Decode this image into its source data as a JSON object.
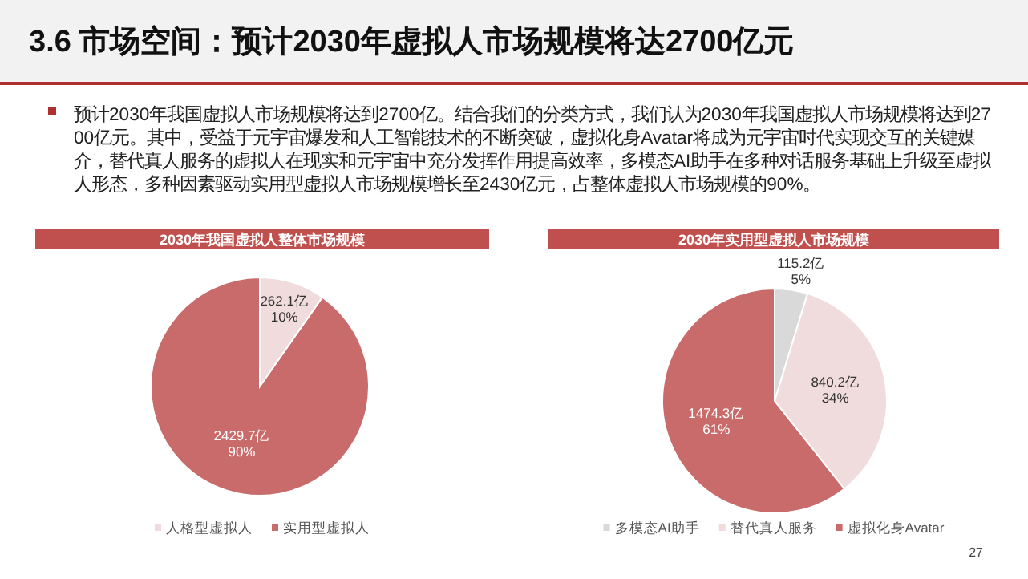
{
  "chart_data": [
    {
      "type": "pie",
      "title": "2030年我国虚拟人整体市场规模",
      "categories": [
        "人格型虚拟人",
        "实用型虚拟人"
      ],
      "values": [
        262.1,
        2429.7
      ],
      "colors": [
        "#f0dcdc",
        "#c96b6b"
      ],
      "value_labels": [
        "262.1亿\n10%",
        "2429.7亿\n90%"
      ],
      "legend": "bottom",
      "annotations": [
        "3.6 市场空间：预计2030年虚拟人市场规模将达2700亿元",
        "预计2030年我国虚拟人市场规模将达到2700亿。结合我们的分类方式，我们认为2030年我国虚拟人市场规模将达到2700亿元。其中，受益于元宇宙爆发和人工智能技术的不断突破，虚拟化身Avatar将成为元宇宙时代实现交互的关键媒介，替代真人服务的虚拟人在现实和元宇宙中充分发挥作用提高效率，多模态AI助手在多种对话服务基础上升级至虚拟人形态，多种因素驱动实用型虚拟人市场规模增长至2430亿元，占整体虚拟人市场规模的90%。"
      ]
    },
    {
      "type": "pie",
      "title": "2030年实用型虚拟人市场规模",
      "categories": [
        "多模态AI助手",
        "替代真人服务",
        "虚拟化身Avatar"
      ],
      "values": [
        115.2,
        840.2,
        1474.3
      ],
      "colors": [
        "#d9d9d9",
        "#f0dcdc",
        "#c96b6b"
      ],
      "value_labels": [
        "115.2亿\n5%",
        "840.2亿\n34%",
        "1474.3亿\n61%"
      ],
      "legend": "bottom",
      "annotations": [
        "27"
      ]
    }
  ]
}
